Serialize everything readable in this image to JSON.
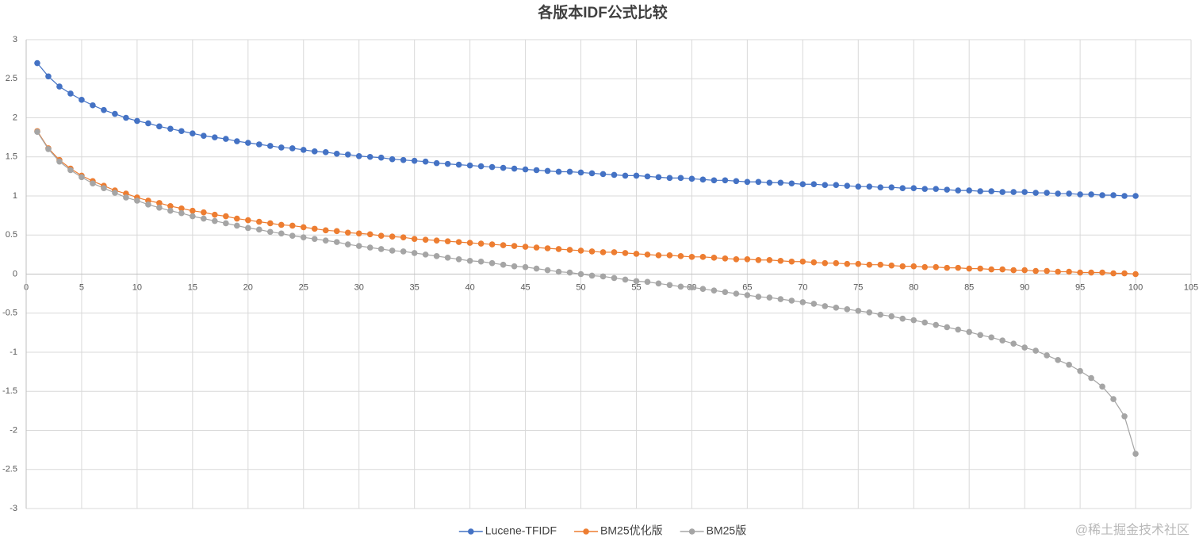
{
  "chart_data": {
    "type": "line",
    "title": "各版本IDF公式比较",
    "watermark": "@稀土掘金技术社区",
    "x": [
      1,
      2,
      3,
      4,
      5,
      6,
      7,
      8,
      9,
      10,
      11,
      12,
      13,
      14,
      15,
      16,
      17,
      18,
      19,
      20,
      21,
      22,
      23,
      24,
      25,
      26,
      27,
      28,
      29,
      30,
      31,
      32,
      33,
      34,
      35,
      36,
      37,
      38,
      39,
      40,
      41,
      42,
      43,
      44,
      45,
      46,
      47,
      48,
      49,
      50,
      51,
      52,
      53,
      54,
      55,
      56,
      57,
      58,
      59,
      60,
      61,
      62,
      63,
      64,
      65,
      66,
      67,
      68,
      69,
      70,
      71,
      72,
      73,
      74,
      75,
      76,
      77,
      78,
      79,
      80,
      81,
      82,
      83,
      84,
      85,
      86,
      87,
      88,
      89,
      90,
      91,
      92,
      93,
      94,
      95,
      96,
      97,
      98,
      99,
      100
    ],
    "series": [
      {
        "name": "Lucene-TFIDF",
        "color": "#4472c4",
        "values": [
          2.7,
          2.53,
          2.4,
          2.31,
          2.23,
          2.16,
          2.1,
          2.05,
          2.0,
          1.96,
          1.93,
          1.89,
          1.86,
          1.83,
          1.8,
          1.77,
          1.75,
          1.73,
          1.7,
          1.68,
          1.66,
          1.64,
          1.62,
          1.61,
          1.59,
          1.57,
          1.56,
          1.54,
          1.53,
          1.51,
          1.5,
          1.49,
          1.47,
          1.46,
          1.45,
          1.44,
          1.42,
          1.41,
          1.4,
          1.39,
          1.38,
          1.37,
          1.36,
          1.35,
          1.34,
          1.33,
          1.32,
          1.31,
          1.31,
          1.3,
          1.29,
          1.28,
          1.27,
          1.26,
          1.26,
          1.25,
          1.24,
          1.23,
          1.23,
          1.22,
          1.21,
          1.2,
          1.2,
          1.19,
          1.18,
          1.18,
          1.17,
          1.17,
          1.16,
          1.15,
          1.15,
          1.14,
          1.14,
          1.13,
          1.12,
          1.12,
          1.11,
          1.11,
          1.1,
          1.1,
          1.09,
          1.09,
          1.08,
          1.07,
          1.07,
          1.06,
          1.06,
          1.05,
          1.05,
          1.05,
          1.04,
          1.04,
          1.03,
          1.03,
          1.02,
          1.02,
          1.01,
          1.01,
          1.0,
          1.0
        ]
      },
      {
        "name": "BM25优化版",
        "color": "#ed7d31",
        "values": [
          1.83,
          1.61,
          1.46,
          1.35,
          1.26,
          1.19,
          1.13,
          1.07,
          1.03,
          0.98,
          0.94,
          0.91,
          0.87,
          0.84,
          0.81,
          0.79,
          0.76,
          0.74,
          0.71,
          0.69,
          0.67,
          0.65,
          0.63,
          0.62,
          0.6,
          0.58,
          0.56,
          0.55,
          0.53,
          0.52,
          0.51,
          0.49,
          0.48,
          0.47,
          0.45,
          0.44,
          0.43,
          0.42,
          0.41,
          0.4,
          0.39,
          0.38,
          0.37,
          0.36,
          0.35,
          0.34,
          0.33,
          0.32,
          0.31,
          0.3,
          0.29,
          0.28,
          0.28,
          0.27,
          0.26,
          0.25,
          0.24,
          0.24,
          0.23,
          0.22,
          0.22,
          0.21,
          0.2,
          0.19,
          0.19,
          0.18,
          0.18,
          0.17,
          0.16,
          0.16,
          0.15,
          0.14,
          0.14,
          0.13,
          0.13,
          0.12,
          0.12,
          0.11,
          0.1,
          0.1,
          0.09,
          0.09,
          0.08,
          0.08,
          0.07,
          0.07,
          0.06,
          0.06,
          0.05,
          0.05,
          0.04,
          0.04,
          0.03,
          0.03,
          0.02,
          0.02,
          0.02,
          0.01,
          0.01,
          0.0
        ]
      },
      {
        "name": "BM25版",
        "color": "#a5a5a5",
        "values": [
          1.82,
          1.6,
          1.44,
          1.33,
          1.24,
          1.16,
          1.1,
          1.04,
          0.98,
          0.94,
          0.89,
          0.85,
          0.81,
          0.78,
          0.74,
          0.71,
          0.68,
          0.65,
          0.62,
          0.59,
          0.57,
          0.54,
          0.52,
          0.49,
          0.47,
          0.45,
          0.43,
          0.41,
          0.38,
          0.36,
          0.34,
          0.32,
          0.3,
          0.29,
          0.27,
          0.25,
          0.23,
          0.21,
          0.19,
          0.17,
          0.16,
          0.14,
          0.12,
          0.1,
          0.09,
          0.07,
          0.05,
          0.03,
          0.02,
          0,
          -0.02,
          -0.03,
          -0.05,
          -0.07,
          -0.09,
          -0.1,
          -0.12,
          -0.14,
          -0.16,
          -0.17,
          -0.19,
          -0.21,
          -0.23,
          -0.25,
          -0.27,
          -0.29,
          -0.3,
          -0.32,
          -0.34,
          -0.36,
          -0.38,
          -0.41,
          -0.43,
          -0.45,
          -0.47,
          -0.49,
          -0.52,
          -0.54,
          -0.57,
          -0.59,
          -0.62,
          -0.65,
          -0.68,
          -0.71,
          -0.74,
          -0.78,
          -0.81,
          -0.85,
          -0.89,
          -0.94,
          -0.98,
          -1.04,
          -1.1,
          -1.16,
          -1.24,
          -1.33,
          -1.44,
          -1.6,
          -1.82,
          -2.3
        ]
      }
    ],
    "xlim": [
      0,
      105
    ],
    "xticks": [
      0,
      5,
      10,
      15,
      20,
      25,
      30,
      35,
      40,
      45,
      50,
      55,
      60,
      65,
      70,
      75,
      80,
      85,
      90,
      95,
      100,
      105
    ],
    "ylim": [
      -3,
      3
    ],
    "yticks": [
      -3,
      -2.5,
      -2,
      -1.5,
      -1,
      -0.5,
      0,
      0.5,
      1,
      1.5,
      2,
      2.5,
      3
    ],
    "grid": true,
    "legend": "bottom"
  }
}
